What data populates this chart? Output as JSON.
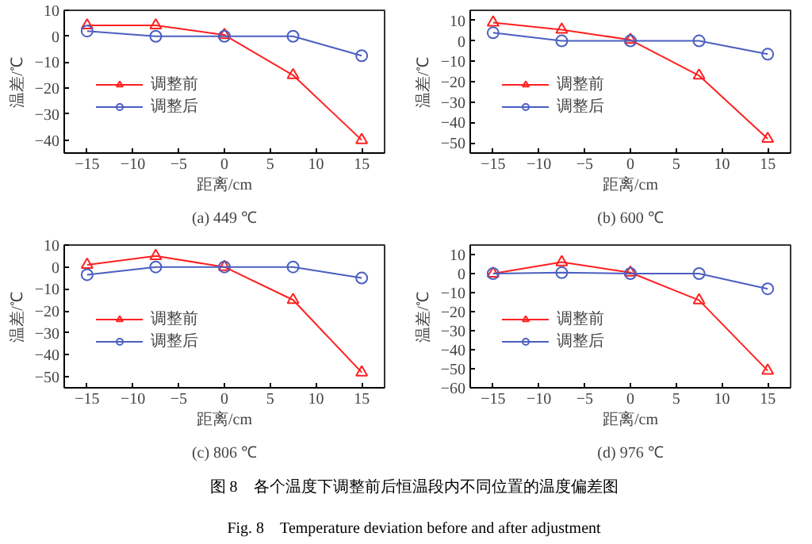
{
  "chart_data": [
    {
      "type": "line",
      "title": "(a) 449 ℃",
      "xlabel": "距离/cm",
      "ylabel": "温差/℃",
      "x": [
        -15,
        -7.5,
        0,
        7.5,
        15
      ],
      "xlim": [
        -17.5,
        17.5
      ],
      "xticks": [
        -15,
        -10,
        -5,
        0,
        5,
        10,
        15
      ],
      "ylim": [
        -45,
        10
      ],
      "yticks": [
        -40,
        -30,
        -20,
        -10,
        0,
        10
      ],
      "grid": false,
      "legend": "left",
      "series": [
        {
          "name": "调整前",
          "color": "#ff2020",
          "marker": "triangle",
          "values": [
            4.2,
            4.2,
            0.5,
            -15,
            -40
          ]
        },
        {
          "name": "调整后",
          "color": "#4a5fc1",
          "marker": "circle",
          "values": [
            2,
            0,
            0,
            0,
            -7.5
          ]
        }
      ]
    },
    {
      "type": "line",
      "title": "(b) 600 ℃",
      "xlabel": "距离/cm",
      "ylabel": "温差/℃",
      "x": [
        -15,
        -7.5,
        0,
        7.5,
        15
      ],
      "xlim": [
        -17.5,
        17.5
      ],
      "xticks": [
        -15,
        -10,
        -5,
        0,
        5,
        10,
        15
      ],
      "ylim": [
        -55,
        15
      ],
      "yticks": [
        -50,
        -40,
        -30,
        -20,
        -10,
        0,
        10
      ],
      "grid": false,
      "legend": "left",
      "series": [
        {
          "name": "调整前",
          "color": "#ff2020",
          "marker": "triangle",
          "values": [
            9,
            5.5,
            0.5,
            -17,
            -48
          ]
        },
        {
          "name": "调整后",
          "color": "#4a5fc1",
          "marker": "circle",
          "values": [
            4,
            0,
            0,
            0,
            -6.5
          ]
        }
      ]
    },
    {
      "type": "line",
      "title": "(c) 806 ℃",
      "xlabel": "距离/cm",
      "ylabel": "温差/℃",
      "x": [
        -15,
        -7.5,
        0,
        7.5,
        15
      ],
      "xlim": [
        -17.5,
        17.5
      ],
      "xticks": [
        -15,
        -10,
        -5,
        0,
        5,
        10,
        15
      ],
      "ylim": [
        -55,
        10
      ],
      "yticks": [
        -50,
        -40,
        -30,
        -20,
        -10,
        0,
        10
      ],
      "grid": false,
      "legend": "left",
      "series": [
        {
          "name": "调整前",
          "color": "#ff2020",
          "marker": "triangle",
          "values": [
            1,
            5,
            0,
            -15,
            -48
          ]
        },
        {
          "name": "调整后",
          "color": "#4a5fc1",
          "marker": "circle",
          "values": [
            -3.5,
            0,
            0,
            0,
            -5
          ]
        }
      ]
    },
    {
      "type": "line",
      "title": "(d) 976 ℃",
      "xlabel": "距离/cm",
      "ylabel": "温差/℃",
      "x": [
        -15,
        -7.5,
        0,
        7.5,
        15
      ],
      "xlim": [
        -17.5,
        17.5
      ],
      "xticks": [
        -15,
        -10,
        -5,
        0,
        5,
        10,
        15
      ],
      "ylim": [
        -60,
        15
      ],
      "yticks": [
        -60,
        -50,
        -40,
        -30,
        -20,
        -10,
        0,
        10
      ],
      "grid": false,
      "legend": "left",
      "annotations": [
        "图 8　各个温度下调整前后恒温段内不同位置的温度偏差图",
        "Fig. 8　Temperature deviation before and after adjustment"
      ],
      "series": [
        {
          "name": "调整前",
          "color": "#ff2020",
          "marker": "triangle",
          "values": [
            0,
            6,
            0.5,
            -14,
            -51
          ]
        },
        {
          "name": "调整后",
          "color": "#4a5fc1",
          "marker": "circle",
          "values": [
            0,
            0.5,
            0,
            0,
            -8
          ]
        }
      ]
    }
  ]
}
